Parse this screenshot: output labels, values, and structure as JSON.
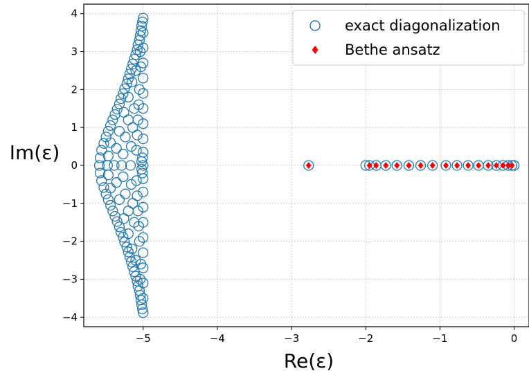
{
  "chart_data": {
    "type": "scatter",
    "xlabel": "Re(ε)",
    "ylabel": "Im(ε)",
    "xlim": [
      -5.8,
      0.2
    ],
    "ylim": [
      -4.25,
      4.25
    ],
    "x_ticks": [
      -5,
      -4,
      -3,
      -2,
      -1,
      0
    ],
    "x_tick_labels": [
      "−5",
      "−4",
      "−3",
      "−2",
      "−1",
      "0"
    ],
    "y_ticks": [
      -4,
      -3,
      -2,
      -1,
      0,
      1,
      2,
      3,
      4
    ],
    "y_tick_labels": [
      "−4",
      "−3",
      "−2",
      "−1",
      "0",
      "1",
      "2",
      "3",
      "4"
    ],
    "grid": true,
    "legend_position": "top-right",
    "series": [
      {
        "name": "exact diagonalization",
        "marker": "open-circle",
        "color": "#1f77b4",
        "points": [
          [
            -5.0,
            3.88
          ],
          [
            -5.01,
            3.78
          ],
          [
            -5.02,
            3.67
          ],
          [
            -5.03,
            3.55
          ],
          [
            -5.04,
            3.42
          ],
          [
            -5.05,
            3.3
          ],
          [
            -5.07,
            3.18
          ],
          [
            -5.08,
            3.05
          ],
          [
            -5.1,
            2.92
          ],
          [
            -5.12,
            2.8
          ],
          [
            -5.14,
            2.67
          ],
          [
            -5.16,
            2.54
          ],
          [
            -5.18,
            2.41
          ],
          [
            -5.2,
            2.28
          ],
          [
            -5.22,
            2.15
          ],
          [
            -5.25,
            2.02
          ],
          [
            -5.27,
            1.89
          ],
          [
            -5.3,
            1.76
          ],
          [
            -5.32,
            1.62
          ],
          [
            -5.35,
            1.48
          ],
          [
            -5.38,
            1.34
          ],
          [
            -5.41,
            1.2
          ],
          [
            -5.44,
            1.05
          ],
          [
            -5.47,
            0.9
          ],
          [
            -5.5,
            0.75
          ],
          [
            -5.53,
            0.58
          ],
          [
            -5.56,
            0.4
          ],
          [
            -5.58,
            0.2
          ],
          [
            -5.59,
            0.0
          ],
          [
            -5.0,
            -3.88
          ],
          [
            -5.01,
            -3.78
          ],
          [
            -5.02,
            -3.67
          ],
          [
            -5.03,
            -3.55
          ],
          [
            -5.04,
            -3.42
          ],
          [
            -5.05,
            -3.3
          ],
          [
            -5.07,
            -3.18
          ],
          [
            -5.08,
            -3.05
          ],
          [
            -5.1,
            -2.92
          ],
          [
            -5.12,
            -2.8
          ],
          [
            -5.14,
            -2.67
          ],
          [
            -5.16,
            -2.54
          ],
          [
            -5.18,
            -2.41
          ],
          [
            -5.2,
            -2.28
          ],
          [
            -5.22,
            -2.15
          ],
          [
            -5.25,
            -2.02
          ],
          [
            -5.27,
            -1.89
          ],
          [
            -5.3,
            -1.76
          ],
          [
            -5.32,
            -1.62
          ],
          [
            -5.35,
            -1.48
          ],
          [
            -5.38,
            -1.34
          ],
          [
            -5.41,
            -1.2
          ],
          [
            -5.44,
            -1.05
          ],
          [
            -5.47,
            -0.9
          ],
          [
            -5.5,
            -0.75
          ],
          [
            -5.53,
            -0.58
          ],
          [
            -5.56,
            -0.4
          ],
          [
            -5.58,
            -0.2
          ],
          [
            -5.0,
            3.5
          ],
          [
            -5.0,
            3.1
          ],
          [
            -5.0,
            2.7
          ],
          [
            -5.0,
            2.3
          ],
          [
            -5.0,
            1.9
          ],
          [
            -5.0,
            1.5
          ],
          [
            -5.0,
            1.1
          ],
          [
            -5.0,
            0.7
          ],
          [
            -5.0,
            0.35
          ],
          [
            -5.0,
            0.0
          ],
          [
            -5.0,
            -0.35
          ],
          [
            -5.0,
            -0.7
          ],
          [
            -5.0,
            -1.1
          ],
          [
            -5.0,
            -1.5
          ],
          [
            -5.0,
            -1.9
          ],
          [
            -5.0,
            -2.3
          ],
          [
            -5.0,
            -2.7
          ],
          [
            -5.0,
            -3.1
          ],
          [
            -5.0,
            -3.5
          ],
          [
            -5.05,
            2.0
          ],
          [
            -5.06,
            1.6
          ],
          [
            -5.07,
            1.2
          ],
          [
            -5.08,
            0.8
          ],
          [
            -5.09,
            0.4
          ],
          [
            -5.05,
            -2.0
          ],
          [
            -5.06,
            -1.6
          ],
          [
            -5.07,
            -1.2
          ],
          [
            -5.08,
            -0.8
          ],
          [
            -5.09,
            -0.4
          ],
          [
            -5.12,
            1.5
          ],
          [
            -5.14,
            1.0
          ],
          [
            -5.16,
            0.5
          ],
          [
            -5.17,
            0.0
          ],
          [
            -5.12,
            -1.5
          ],
          [
            -5.14,
            -1.0
          ],
          [
            -5.16,
            -0.5
          ],
          [
            -5.2,
            1.2
          ],
          [
            -5.24,
            0.75
          ],
          [
            -5.27,
            0.3
          ],
          [
            -5.29,
            0.0
          ],
          [
            -5.2,
            -1.2
          ],
          [
            -5.24,
            -0.75
          ],
          [
            -5.27,
            -0.3
          ],
          [
            -5.32,
            0.9
          ],
          [
            -5.36,
            0.45
          ],
          [
            -5.39,
            0.0
          ],
          [
            -5.32,
            -0.9
          ],
          [
            -5.36,
            -0.45
          ],
          [
            -5.44,
            0.6
          ],
          [
            -5.47,
            0.25
          ],
          [
            -5.48,
            0.0
          ],
          [
            -5.44,
            -0.6
          ],
          [
            -5.47,
            -0.25
          ],
          [
            -5.15,
            2.2
          ],
          [
            -5.2,
            1.8
          ],
          [
            -5.26,
            1.4
          ],
          [
            -5.1,
            2.5
          ],
          [
            -5.15,
            -2.2
          ],
          [
            -5.2,
            -1.8
          ],
          [
            -5.26,
            -1.4
          ],
          [
            -5.1,
            -2.5
          ],
          [
            -5.04,
            3.0
          ],
          [
            -5.03,
            2.6
          ],
          [
            -5.04,
            -3.0
          ],
          [
            -5.03,
            -2.6
          ],
          [
            -5.02,
            0.1
          ],
          [
            -5.02,
            -0.1
          ],
          [
            -5.01,
            0.2
          ],
          [
            -5.01,
            -0.2
          ],
          [
            -2.77,
            0.0
          ],
          [
            -2.0,
            0.0
          ],
          [
            -1.95,
            0.0
          ],
          [
            -1.86,
            0.0
          ],
          [
            -1.73,
            0.0
          ],
          [
            -1.58,
            0.0
          ],
          [
            -1.42,
            0.0
          ],
          [
            -1.26,
            0.0
          ],
          [
            -1.1,
            0.0
          ],
          [
            -0.92,
            0.0
          ],
          [
            -0.77,
            0.0
          ],
          [
            -0.62,
            0.0
          ],
          [
            -0.48,
            0.0
          ],
          [
            -0.35,
            0.0
          ],
          [
            -0.24,
            0.0
          ],
          [
            -0.15,
            0.0
          ],
          [
            -0.08,
            0.0
          ],
          [
            -0.03,
            0.0
          ],
          [
            0.0,
            0.0
          ]
        ]
      },
      {
        "name": "Bethe ansatz",
        "marker": "diamond",
        "color": "#ff0000",
        "points": [
          [
            -2.77,
            0.0
          ],
          [
            -1.95,
            0.0
          ],
          [
            -1.86,
            0.0
          ],
          [
            -1.73,
            0.0
          ],
          [
            -1.58,
            0.0
          ],
          [
            -1.42,
            0.0
          ],
          [
            -1.26,
            0.0
          ],
          [
            -1.1,
            0.0
          ],
          [
            -0.92,
            0.0
          ],
          [
            -0.77,
            0.0
          ],
          [
            -0.62,
            0.0
          ],
          [
            -0.48,
            0.0
          ],
          [
            -0.35,
            0.0
          ],
          [
            -0.24,
            0.0
          ],
          [
            -0.15,
            0.0
          ],
          [
            -0.08,
            0.0
          ],
          [
            -0.03,
            0.0
          ]
        ]
      }
    ]
  }
}
